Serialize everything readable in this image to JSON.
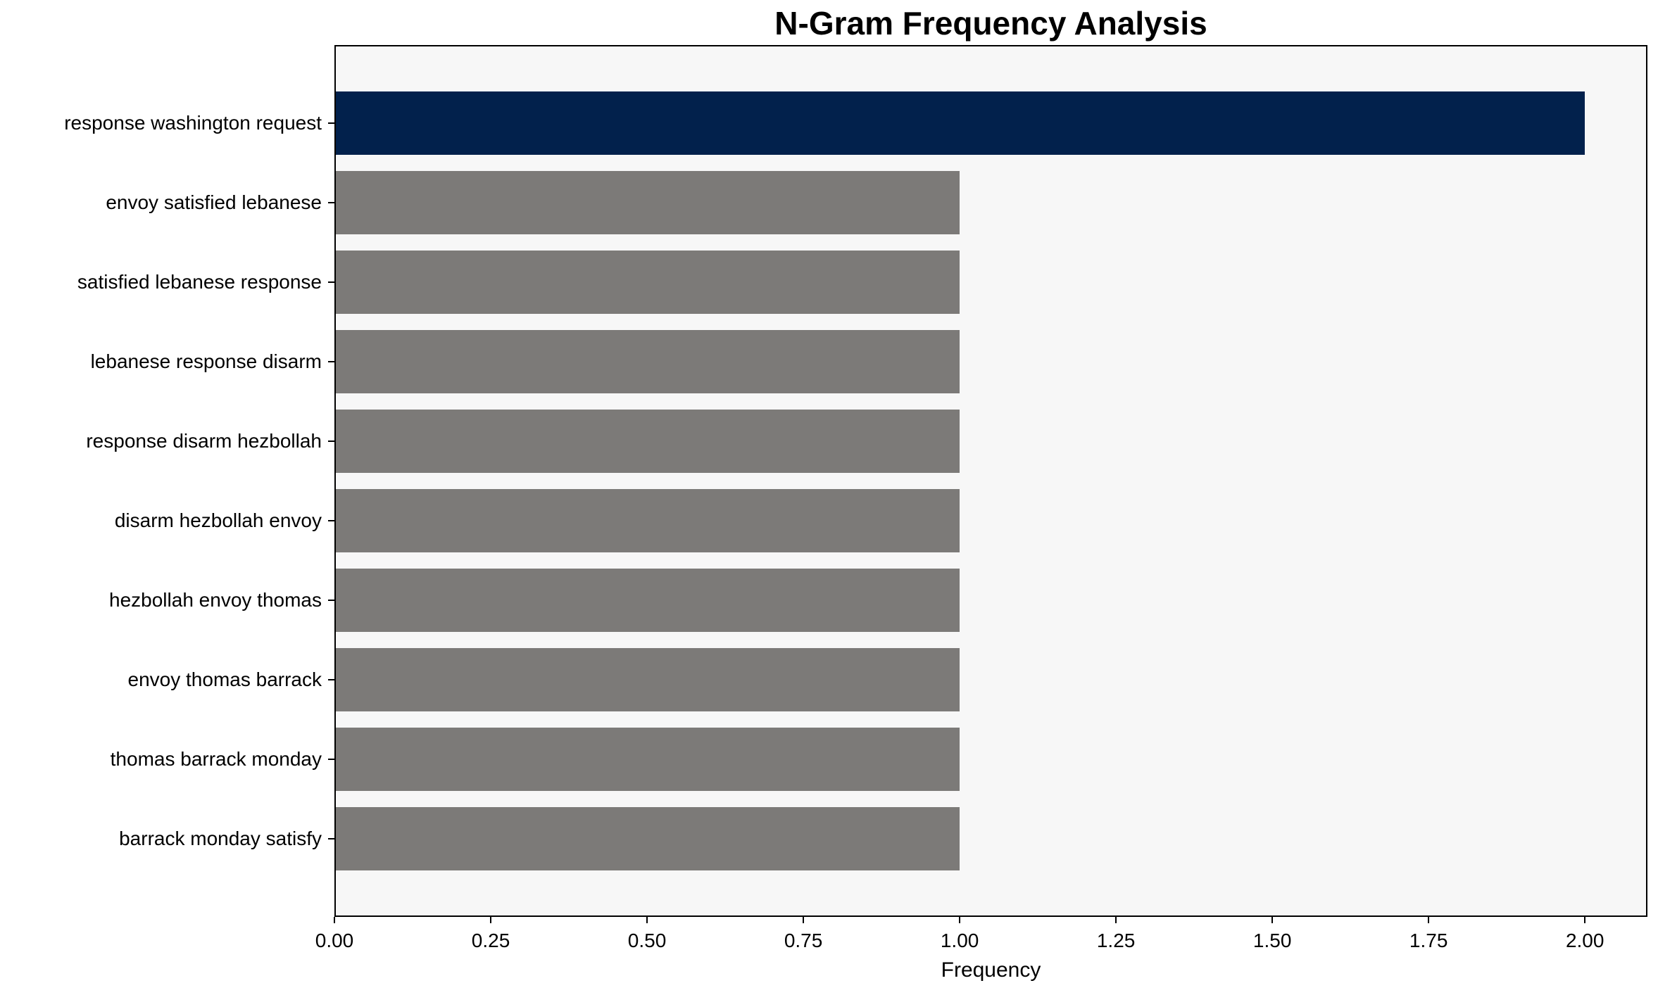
{
  "chart_data": {
    "type": "bar",
    "orientation": "horizontal",
    "title": "N-Gram Frequency Analysis",
    "xlabel": "Frequency",
    "ylabel": "",
    "categories": [
      "response washington request",
      "envoy satisfied lebanese",
      "satisfied lebanese response",
      "lebanese response disarm",
      "response disarm hezbollah",
      "disarm hezbollah envoy",
      "hezbollah envoy thomas",
      "envoy thomas barrack",
      "thomas barrack monday",
      "barrack monday satisfy"
    ],
    "values": [
      2,
      1,
      1,
      1,
      1,
      1,
      1,
      1,
      1,
      1
    ],
    "bar_colors": [
      "#02214c",
      "#7c7a78",
      "#7c7a78",
      "#7c7a78",
      "#7c7a78",
      "#7c7a78",
      "#7c7a78",
      "#7c7a78",
      "#7c7a78",
      "#7c7a78"
    ],
    "xlim": [
      0,
      2.1
    ],
    "xtick_values": [
      0,
      0.25,
      0.5,
      0.75,
      1.0,
      1.25,
      1.5,
      1.75,
      2.0
    ],
    "xtick_labels": [
      "0.00",
      "0.25",
      "0.50",
      "0.75",
      "1.00",
      "1.25",
      "1.50",
      "1.75",
      "2.00"
    ],
    "grid": false,
    "legend": "none",
    "colors": {
      "highlight_bar": "#02214c",
      "default_bar": "#7c7a78",
      "plot_background": "#f7f7f7",
      "figure_background": "#ffffff",
      "spine": "#000000",
      "text": "#000000"
    }
  }
}
